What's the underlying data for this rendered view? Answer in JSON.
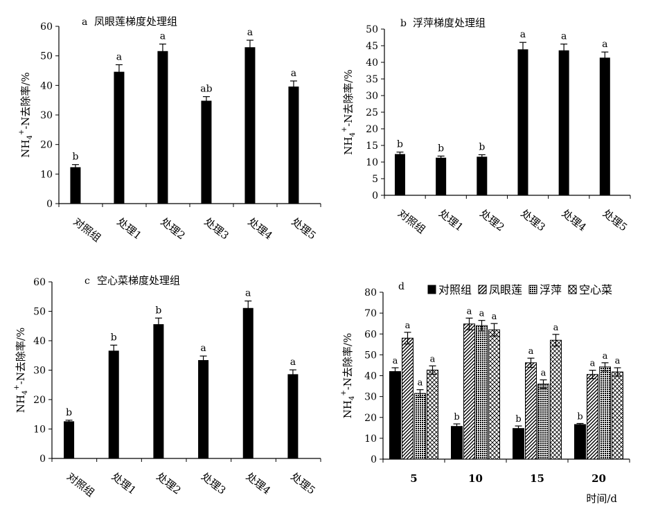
{
  "chart_data": [
    {
      "type": "bar",
      "panel_label": "a",
      "title": "凤眼莲梯度处理组",
      "ylabel": "NH4+-N去除率/%",
      "xlabel": "",
      "ylim": [
        0,
        60
      ],
      "yticks": [
        0,
        10,
        20,
        30,
        40,
        50,
        60
      ],
      "categories": [
        "对照组",
        "处理1",
        "处理2",
        "处理3",
        "处理4",
        "处理5"
      ],
      "values": [
        12.2,
        44.5,
        51.5,
        34.7,
        52.8,
        39.5
      ],
      "errors": [
        1.0,
        2.5,
        2.5,
        1.5,
        2.5,
        2.0
      ],
      "sig": [
        "b",
        "a",
        "a",
        "ab",
        "a",
        "a"
      ],
      "grid": false,
      "legend": "none"
    },
    {
      "type": "bar",
      "panel_label": "b",
      "title": "浮萍梯度处理组",
      "ylabel": "NH4+-N去除率/%",
      "xlabel": "",
      "ylim": [
        0,
        50
      ],
      "yticks": [
        0,
        5,
        10,
        15,
        20,
        25,
        30,
        35,
        40,
        45,
        50
      ],
      "categories": [
        "对照组",
        "处理1",
        "处理2",
        "处理3",
        "处理4",
        "处理5"
      ],
      "values": [
        12.3,
        11.2,
        11.5,
        43.8,
        43.5,
        41.3
      ],
      "errors": [
        0.7,
        0.6,
        0.7,
        2.2,
        2.0,
        1.8
      ],
      "sig": [
        "b",
        "b",
        "b",
        "a",
        "a",
        "a"
      ],
      "grid": false,
      "legend": "none"
    },
    {
      "type": "bar",
      "panel_label": "c",
      "title": "空心菜梯度处理组",
      "ylabel": "NH4+-N去除率/%",
      "xlabel": "",
      "ylim": [
        0,
        60
      ],
      "yticks": [
        0,
        10,
        20,
        30,
        40,
        50,
        60
      ],
      "categories": [
        "对照组",
        "处理1",
        "处理2",
        "处理3",
        "处理4",
        "处理5"
      ],
      "values": [
        12.5,
        36.5,
        45.5,
        33.3,
        51.0,
        28.5
      ],
      "errors": [
        0.5,
        2.0,
        2.2,
        1.5,
        2.5,
        1.6
      ],
      "sig": [
        "b",
        "b",
        "b",
        "a",
        "a",
        "a"
      ],
      "grid": false,
      "legend": "none"
    },
    {
      "type": "bar",
      "panel_label": "d",
      "title": "",
      "ylabel": "NH4+-N去除率/%",
      "xlabel": "时间/d",
      "ylim": [
        0,
        80
      ],
      "yticks": [
        0,
        10,
        20,
        30,
        40,
        50,
        60,
        70,
        80
      ],
      "categories": [
        "5",
        "10",
        "15",
        "20"
      ],
      "series": [
        {
          "name": "对照组",
          "pattern": "solid",
          "values": [
            42.0,
            15.7,
            14.7,
            16.6
          ],
          "errors": [
            1.8,
            1.2,
            1.2,
            0.5
          ],
          "sig": [
            "a",
            "b",
            "b",
            "b"
          ]
        },
        {
          "name": "凤眼莲",
          "pattern": "diagonal",
          "values": [
            58.0,
            64.8,
            46.2,
            40.6
          ],
          "errors": [
            2.8,
            2.8,
            2.2,
            2.0
          ],
          "sig": [
            "a",
            "a",
            "a",
            "a"
          ]
        },
        {
          "name": "浮萍",
          "pattern": "grid",
          "values": [
            31.5,
            64.0,
            36.0,
            44.2
          ],
          "errors": [
            1.8,
            2.5,
            2.0,
            2.0
          ],
          "sig": [
            "a",
            "a",
            "a",
            "a"
          ]
        },
        {
          "name": "空心菜",
          "pattern": "crosshatch",
          "values": [
            42.7,
            62.0,
            57.0,
            41.8
          ],
          "errors": [
            2.0,
            3.0,
            2.8,
            2.0
          ],
          "sig": [
            "a",
            "a",
            "a",
            "a"
          ]
        }
      ],
      "grid": false,
      "legend": "top"
    }
  ]
}
